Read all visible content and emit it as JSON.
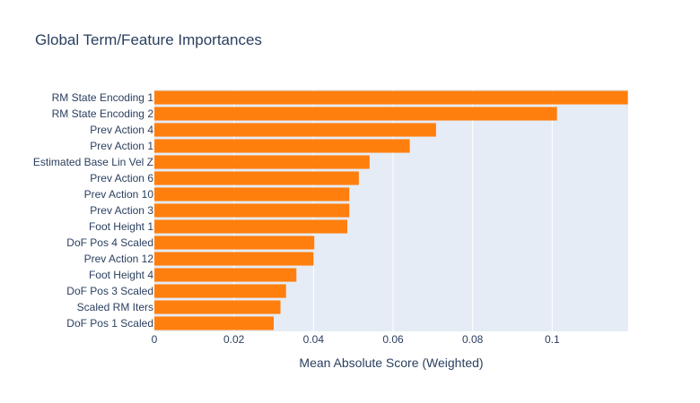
{
  "chart_data": {
    "type": "bar",
    "orientation": "horizontal",
    "title": "Global Term/Feature Importances",
    "xlabel": "Mean Absolute Score (Weighted)",
    "ylabel": "",
    "categories": [
      "RM State Encoding 1",
      "RM State Encoding 2",
      "Prev Action 4",
      "Prev Action 1",
      "Estimated Base Lin Vel Z",
      "Prev Action 6",
      "Prev Action 10",
      "Prev Action 3",
      "Foot Height 1",
      "DoF Pos 4 Scaled",
      "Prev Action 12",
      "Foot Height 4",
      "DoF Pos 3 Scaled",
      "Scaled RM Iters",
      "DoF Pos 1 Scaled"
    ],
    "values": [
      0.119,
      0.1012,
      0.0708,
      0.0642,
      0.0541,
      0.0514,
      0.049,
      0.049,
      0.0485,
      0.0402,
      0.04,
      0.0357,
      0.0331,
      0.0317,
      0.03
    ],
    "xlim": [
      0,
      0.1191
    ],
    "xticks": [
      0,
      0.02,
      0.04,
      0.06,
      0.08,
      0.1
    ],
    "xtick_labels": [
      "0",
      "0.02",
      "0.04",
      "0.06",
      "0.08",
      "0.1"
    ],
    "grid": true,
    "legend": "none",
    "colors": {
      "bar": "#ff7f0e",
      "plot_background": "#e5ecf6",
      "grid": "#ffffff",
      "text": "#2a3f5f"
    }
  }
}
